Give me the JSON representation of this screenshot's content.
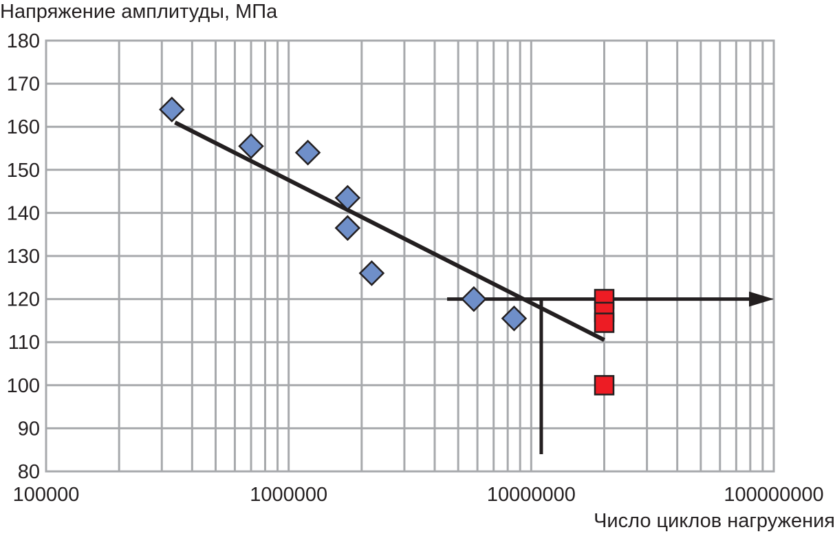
{
  "chart_data": {
    "type": "scatter",
    "title": "",
    "ylabel": "Напряжение амплитуды, МПа",
    "xlabel": "Число циклов нагружения",
    "x_scale": "log",
    "xlim": [
      100000,
      100000000
    ],
    "ylim": [
      80,
      180
    ],
    "x_ticks": [
      100000,
      1000000,
      10000000,
      100000000
    ],
    "x_tick_labels": [
      "100000",
      "1000000",
      "10000000",
      "100000000"
    ],
    "y_ticks": [
      80,
      90,
      100,
      110,
      120,
      130,
      140,
      150,
      160,
      170,
      180
    ],
    "grid": true,
    "series": [
      {
        "marker": "diamond",
        "color": "#6f8fc9",
        "points": [
          {
            "x": 330000,
            "y": 164
          },
          {
            "x": 700000,
            "y": 155.5
          },
          {
            "x": 1200000,
            "y": 154
          },
          {
            "x": 1750000,
            "y": 143.5
          },
          {
            "x": 1750000,
            "y": 136.5
          },
          {
            "x": 2200000,
            "y": 126
          },
          {
            "x": 5800000,
            "y": 120
          },
          {
            "x": 8500000,
            "y": 115.5
          }
        ]
      },
      {
        "marker": "square",
        "color": "#ed1c24",
        "points": [
          {
            "x": 20000000,
            "y": 120
          },
          {
            "x": 20000000,
            "y": 117
          },
          {
            "x": 20000000,
            "y": 114.5
          },
          {
            "x": 20000000,
            "y": 100
          }
        ]
      }
    ],
    "fit_line": {
      "color": "#231f20",
      "points": [
        {
          "x": 340000,
          "y": 161
        },
        {
          "x": 20000000,
          "y": 110.5
        }
      ]
    },
    "annotations": {
      "color": "#231f20",
      "horizontal_arrow": {
        "y": 120,
        "x_from": 4500000,
        "x_to": 100000000
      },
      "vertical_line": {
        "x": 11000000,
        "y_from": 120,
        "y_to": 84
      }
    }
  }
}
